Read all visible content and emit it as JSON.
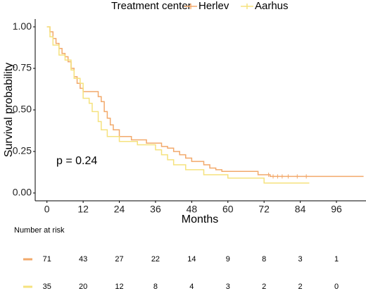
{
  "chart_data": {
    "type": "step",
    "legend_title": "Treatment center",
    "legend_position": "top",
    "x_label": "Months",
    "y_label": "Survival probability",
    "annotation": "p = 0.24",
    "xlim": [
      -3.9,
      105.8
    ],
    "ylim": [
      -0.047,
      1.047
    ],
    "xticks": [
      0,
      12,
      24,
      36,
      48,
      60,
      72,
      84,
      96
    ],
    "yticks": [
      {
        "value": 0,
        "label": "0.00"
      },
      {
        "value": 0.25,
        "label": "0.25"
      },
      {
        "value": 0.5,
        "label": "0.50"
      },
      {
        "value": 0.75,
        "label": "0.75"
      },
      {
        "value": 1,
        "label": "1.00"
      }
    ],
    "series": [
      {
        "name": "Herlev",
        "color": "#f2a96b",
        "x": [
          0,
          1,
          2,
          3,
          4,
          5,
          6,
          7,
          8,
          9,
          10,
          11,
          12,
          17,
          18,
          19,
          20,
          21,
          22,
          24,
          28,
          33,
          38,
          40,
          42,
          44,
          46,
          48,
          52,
          54,
          56,
          58,
          70,
          74,
          105
        ],
        "values": [
          1.0,
          0.97,
          0.93,
          0.9,
          0.87,
          0.84,
          0.82,
          0.79,
          0.75,
          0.7,
          0.66,
          0.63,
          0.61,
          0.58,
          0.55,
          0.49,
          0.45,
          0.41,
          0.38,
          0.34,
          0.32,
          0.3,
          0.28,
          0.27,
          0.25,
          0.23,
          0.21,
          0.19,
          0.17,
          0.15,
          0.14,
          0.13,
          0.11,
          0.1,
          0.1
        ],
        "censor_x": [
          73.5,
          75,
          76.5,
          78,
          80,
          83,
          86
        ]
      },
      {
        "name": "Aarhus",
        "color": "#f5e27e",
        "x": [
          0,
          1,
          2,
          4,
          6,
          8,
          9,
          11,
          12,
          14,
          15,
          17,
          18,
          20,
          24,
          30,
          36,
          38,
          40,
          42,
          46,
          52,
          60,
          72,
          87
        ],
        "values": [
          1.0,
          0.94,
          0.89,
          0.83,
          0.8,
          0.74,
          0.69,
          0.66,
          0.57,
          0.54,
          0.49,
          0.43,
          0.38,
          0.34,
          0.31,
          0.29,
          0.26,
          0.23,
          0.2,
          0.17,
          0.14,
          0.11,
          0.09,
          0.06,
          0.06
        ]
      }
    ],
    "risk_table": {
      "title": "Number at risk",
      "rows": [
        [
          71,
          43,
          27,
          22,
          14,
          9,
          8,
          3,
          1
        ],
        [
          35,
          20,
          12,
          8,
          4,
          3,
          2,
          2,
          0
        ]
      ]
    }
  }
}
